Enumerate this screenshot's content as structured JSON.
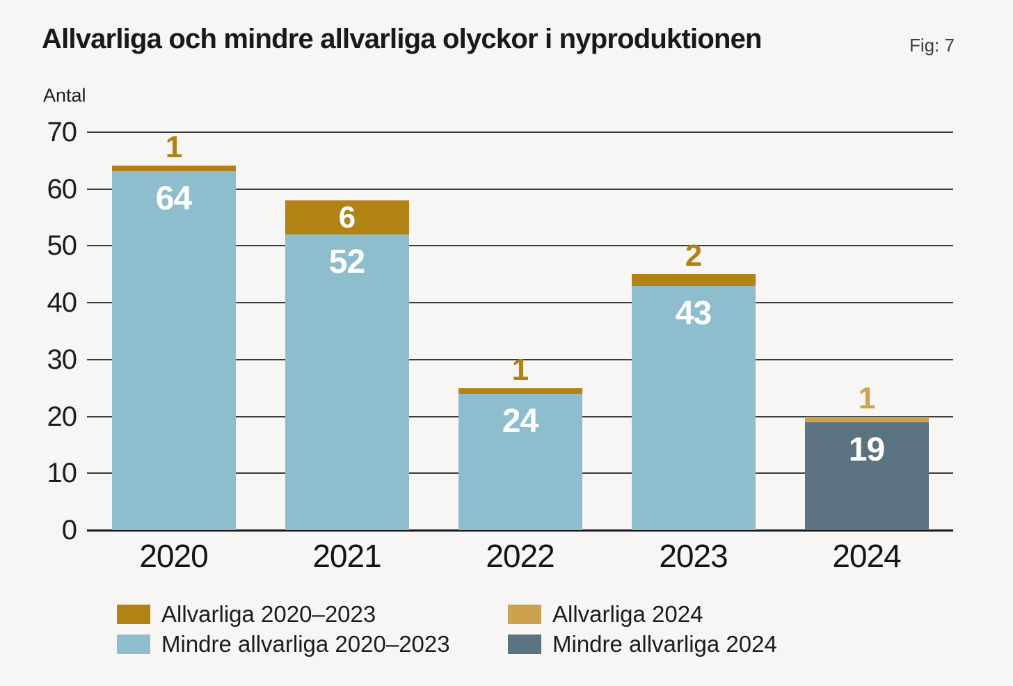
{
  "header": {
    "title": "Allvarliga och mindre allvarliga olyckor i nyproduktionen",
    "fig_label": "Fig: 7"
  },
  "chart_data": {
    "type": "bar",
    "stacked": true,
    "title": "Allvarliga och mindre allvarliga olyckor i nyproduktionen",
    "ylabel": "Antal",
    "xlabel": "",
    "ylim": [
      0,
      70
    ],
    "yticks": [
      0,
      10,
      20,
      30,
      40,
      50,
      60,
      70
    ],
    "grid": true,
    "legend_position": "bottom",
    "categories": [
      "2020",
      "2021",
      "2022",
      "2023",
      "2024"
    ],
    "series": [
      {
        "name": "Allvarliga 2020–2023",
        "role": "serious-2020-2023",
        "color": "#b28214",
        "values": [
          1,
          6,
          1,
          2,
          null
        ]
      },
      {
        "name": "Allvarliga 2024",
        "role": "serious-2024",
        "color": "#cda24f",
        "values": [
          null,
          null,
          null,
          null,
          1
        ]
      },
      {
        "name": "Mindre allvarliga 2020–2023",
        "role": "minor-2020-2023",
        "color": "#8ebdcd",
        "values": [
          64,
          52,
          24,
          43,
          null
        ]
      },
      {
        "name": "Mindre allvarliga 2024",
        "role": "minor-2024",
        "color": "#5b7380",
        "values": [
          null,
          null,
          null,
          null,
          19
        ]
      }
    ],
    "totals": [
      65,
      58,
      25,
      45,
      20
    ],
    "legend": [
      {
        "label": "Allvarliga 2020–2023",
        "color": "#b28214"
      },
      {
        "label": "Allvarliga 2024",
        "color": "#cda24f"
      },
      {
        "label": "Mindre allvarliga 2020–2023",
        "color": "#8ebdcd"
      },
      {
        "label": "Mindre allvarliga 2024",
        "color": "#5b7380"
      }
    ]
  },
  "colors": {
    "background": "#f7f6f5",
    "gridline": "#3b3b3b",
    "axis_line": "#191919",
    "title_text": "#191919",
    "fig_text": "#3c3c3c",
    "tick_text": "#1c1c1c",
    "bar_value_text": "#ffffff"
  }
}
